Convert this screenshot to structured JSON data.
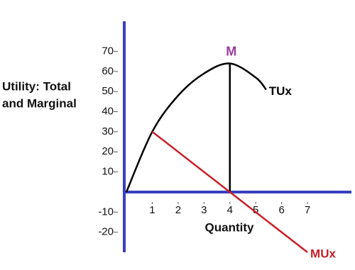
{
  "chart_data": {
    "type": "line",
    "ylabel": [
      "Utility: Total",
      "and Marginal"
    ],
    "xlabel": "Quantity",
    "xlim": [
      0,
      8.7
    ],
    "ylim": [
      -30,
      85
    ],
    "xticks": [
      1,
      2,
      3,
      4,
      5,
      6,
      7
    ],
    "yticks": [
      70,
      60,
      50,
      40,
      30,
      20,
      10,
      -10,
      -20
    ],
    "axis_color": "#3a3fbf",
    "series": [
      {
        "name": "TUx",
        "color": "#000000",
        "x": [
          0,
          1,
          2,
          3,
          4,
          5,
          5.4
        ],
        "values": [
          0,
          30,
          48,
          59,
          64,
          57,
          51
        ]
      },
      {
        "name": "MUx",
        "color": "#c8202a",
        "x": [
          1,
          4,
          7
        ],
        "values": [
          30,
          0,
          -30
        ]
      }
    ],
    "peak": {
      "label": "M",
      "x": 4,
      "y": 64,
      "color": "#9b3a9b"
    }
  }
}
